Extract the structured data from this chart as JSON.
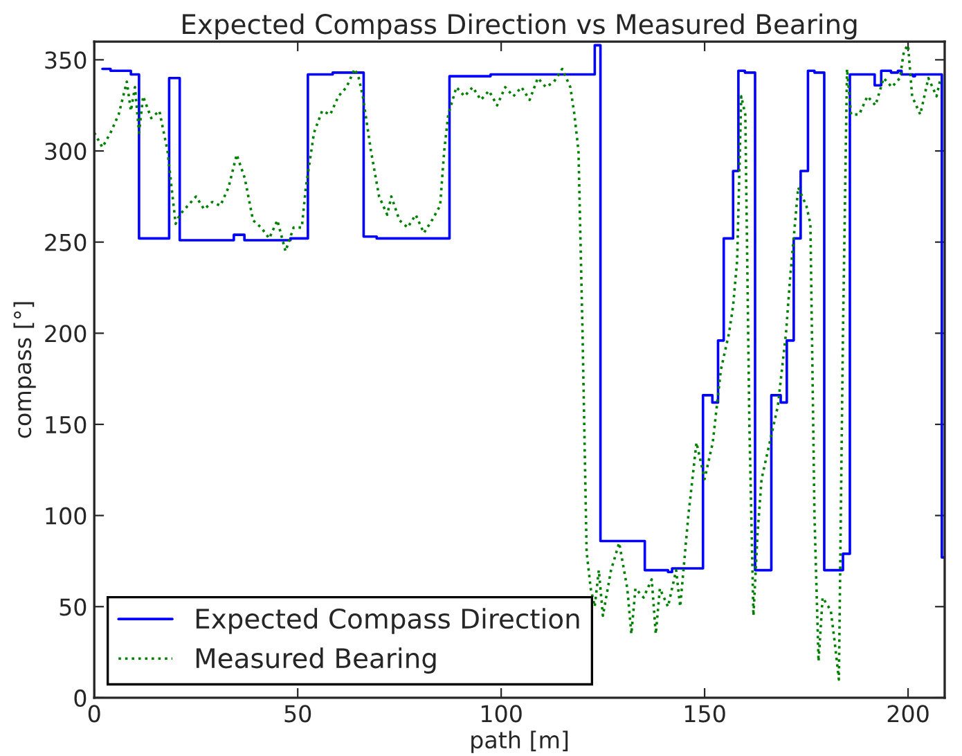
{
  "chart_data": {
    "type": "line",
    "title": "Expected Compass Direction vs Measured Bearing",
    "xlabel": "path [m]",
    "ylabel": "compass [°]",
    "xlim": [
      0,
      209
    ],
    "ylim": [
      0,
      360
    ],
    "xticks": [
      0,
      50,
      100,
      150,
      200
    ],
    "yticks": [
      0,
      50,
      100,
      150,
      200,
      250,
      300,
      350
    ],
    "grid": false,
    "legend": "bottom left",
    "series": [
      {
        "name": "Expected Compass Direction",
        "type": "step",
        "color": "#0000ff",
        "line_style": "solid",
        "x": [
          2,
          4,
          9,
          11,
          18.4,
          21,
          34.3,
          36.9,
          48.2,
          52.5,
          58.6,
          66.2,
          69.4,
          76,
          87.3,
          97.4,
          123,
          124.4,
          135.3,
          141,
          142,
          149.6,
          151.9,
          153.3,
          154.7,
          157,
          158.3,
          159.9,
          162.4,
          166.4,
          168.7,
          170.2,
          171.9,
          173.6,
          175.4,
          177,
          179.4,
          184,
          185.7,
          191.8,
          193.4,
          195.8,
          197.5,
          198.4,
          201.2,
          201.7,
          208.3,
          209
        ],
        "values": [
          345,
          344,
          342,
          252,
          340,
          251,
          254,
          251,
          252,
          342,
          343,
          253,
          252,
          252,
          341,
          342,
          358,
          86,
          70,
          69,
          71,
          166,
          162,
          196,
          252,
          289,
          344,
          343,
          70,
          166,
          162,
          196,
          252,
          289,
          344,
          343,
          70,
          79,
          342,
          336,
          344,
          343,
          344,
          342,
          341,
          342,
          77,
          77
        ]
      },
      {
        "name": "Measured Bearing",
        "color": "#008000",
        "line_style": "dotted",
        "x": [
          0,
          2,
          4,
          6,
          8,
          9,
          10,
          11,
          12,
          14,
          16,
          18,
          19,
          20,
          21,
          23,
          25,
          27,
          29,
          31,
          33,
          35,
          37,
          39,
          41,
          43,
          45,
          47,
          49,
          51,
          52,
          54,
          56,
          58,
          60,
          62,
          64,
          65,
          66,
          68,
          70,
          72,
          73,
          75,
          77,
          79,
          81,
          83,
          85,
          86,
          87,
          89,
          91,
          93,
          95,
          97,
          99,
          101,
          103,
          105,
          107,
          109,
          111,
          113,
          115,
          117,
          118,
          119,
          120,
          121,
          122,
          123,
          124,
          125,
          127,
          129,
          131,
          132,
          133,
          135,
          137,
          138,
          139,
          141,
          143,
          144,
          146,
          148,
          150,
          152,
          154,
          156,
          157,
          158,
          159,
          160,
          161,
          162,
          163,
          164,
          166,
          168,
          170,
          171,
          173,
          175,
          176,
          177,
          178,
          179,
          181,
          182,
          183,
          184,
          185,
          186,
          188,
          190,
          192,
          194,
          196,
          198,
          199,
          200,
          201,
          203,
          205,
          207,
          208
        ],
        "values": [
          310,
          302,
          310,
          320,
          338,
          322,
          335,
          310,
          330,
          318,
          322,
          300,
          280,
          260,
          265,
          270,
          275,
          268,
          272,
          270,
          280,
          298,
          285,
          262,
          258,
          252,
          262,
          245,
          258,
          258,
          280,
          310,
          322,
          320,
          330,
          335,
          345,
          340,
          330,
          300,
          275,
          265,
          275,
          262,
          258,
          265,
          255,
          262,
          270,
          300,
          320,
          335,
          330,
          335,
          328,
          333,
          325,
          335,
          330,
          335,
          328,
          340,
          335,
          338,
          345,
          335,
          320,
          300,
          200,
          80,
          60,
          50,
          70,
          45,
          70,
          85,
          60,
          35,
          60,
          55,
          65,
          35,
          60,
          50,
          70,
          50,
          100,
          140,
          120,
          140,
          180,
          200,
          215,
          240,
          330,
          320,
          150,
          45,
          90,
          120,
          140,
          160,
          200,
          230,
          280,
          270,
          260,
          100,
          20,
          55,
          48,
          30,
          10,
          200,
          345,
          320,
          320,
          330,
          325,
          340,
          335,
          340,
          355,
          358,
          330,
          320,
          340,
          330,
          340
        ]
      }
    ]
  }
}
